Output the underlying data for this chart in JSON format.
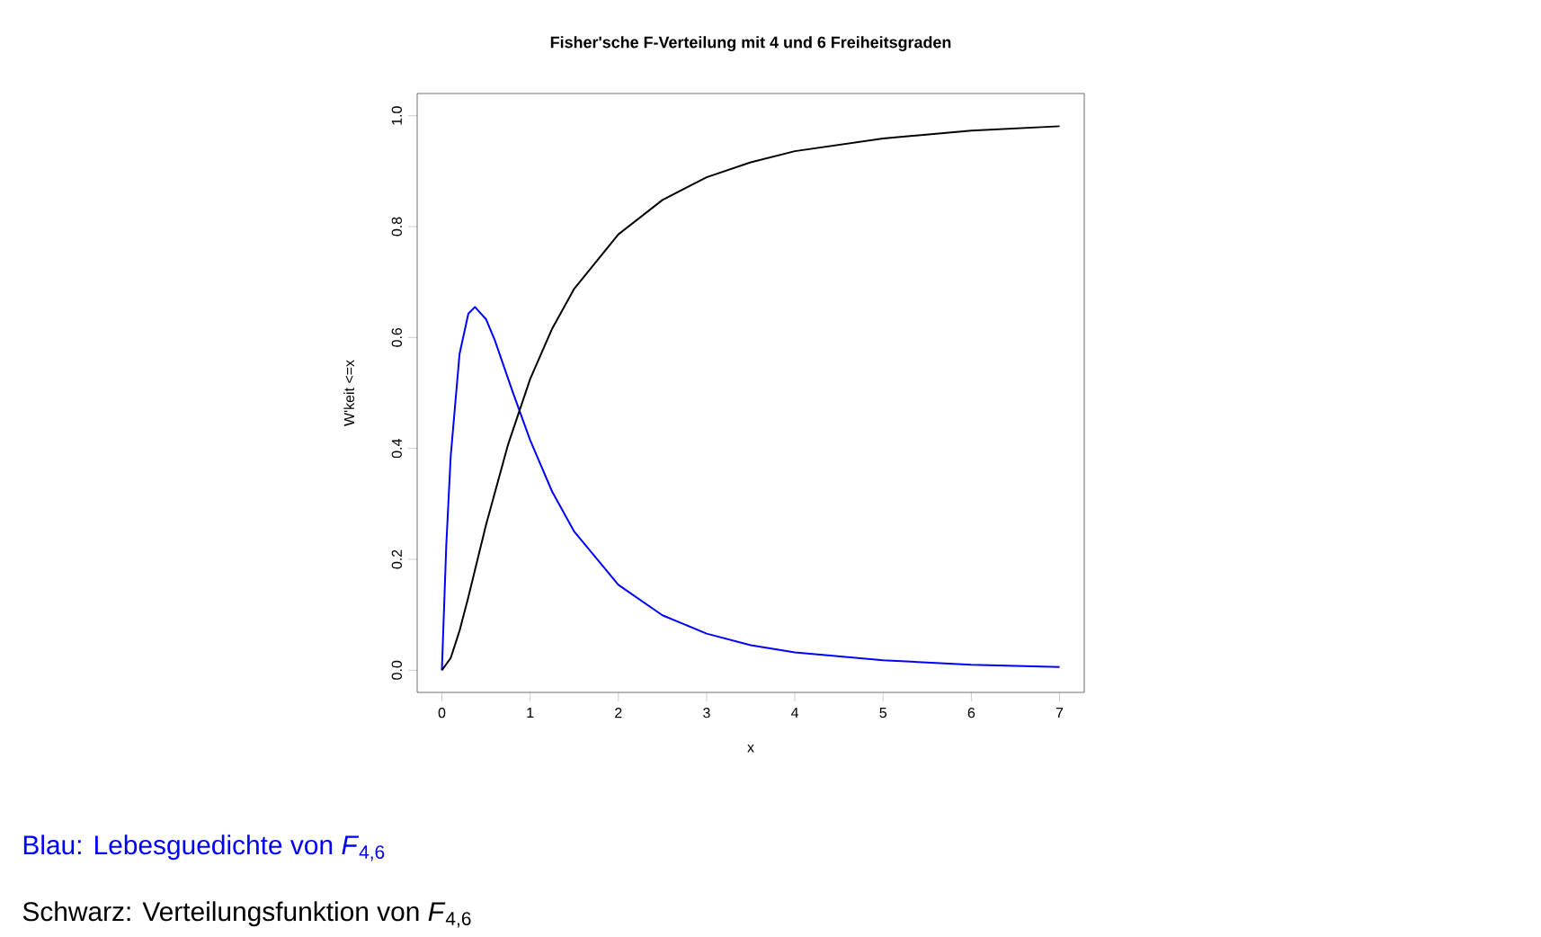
{
  "chart_data": {
    "type": "line",
    "title": "Fisher'sche F-Verteilung mit 4 und 6 Freiheitsgraden",
    "xlabel": "x",
    "ylabel": "W'keit <=x",
    "series": [
      {
        "color": "#0000ff",
        "x": [
          0,
          0.05,
          0.1,
          0.2,
          0.3,
          0.375,
          0.5,
          0.6,
          0.8,
          1,
          1.25,
          1.5,
          2,
          2.5,
          3,
          3.5,
          4,
          5,
          6,
          7
        ],
        "values": [
          0,
          0.226,
          0.386,
          0.57,
          0.643,
          0.655,
          0.633,
          0.595,
          0.503,
          0.415,
          0.322,
          0.25,
          0.154,
          0.099,
          0.066,
          0.045,
          0.032,
          0.018,
          0.01,
          0.006
        ]
      },
      {
        "color": "#000000",
        "x": [
          0,
          0.1,
          0.2,
          0.3,
          0.5,
          0.75,
          1,
          1.25,
          1.5,
          2,
          2.5,
          3,
          3.5,
          4,
          5,
          6,
          7
        ],
        "values": [
          0,
          0.022,
          0.071,
          0.132,
          0.262,
          0.407,
          0.525,
          0.616,
          0.688,
          0.786,
          0.848,
          0.889,
          0.916,
          0.936,
          0.959,
          0.973,
          0.981
        ]
      }
    ],
    "xlim": [
      -0.28,
      7.28
    ],
    "ylim": [
      -0.04,
      1.04
    ],
    "xticks": [
      0,
      1,
      2,
      3,
      4,
      5,
      6,
      7
    ],
    "yticks": [
      {
        "value": 0,
        "label": "0.0"
      },
      {
        "value": 0.2,
        "label": "0.2"
      },
      {
        "value": 0.4,
        "label": "0.4"
      },
      {
        "value": 0.6,
        "label": "0.6"
      },
      {
        "value": 0.8,
        "label": "0.8"
      },
      {
        "value": 1,
        "label": "1.0"
      }
    ],
    "annotations": [
      "Blau: Lebesguedichte von *F*$_{4,6}$",
      "Schwarz: Verteilungsfunktion von *F*$_{4,6}$"
    ]
  }
}
